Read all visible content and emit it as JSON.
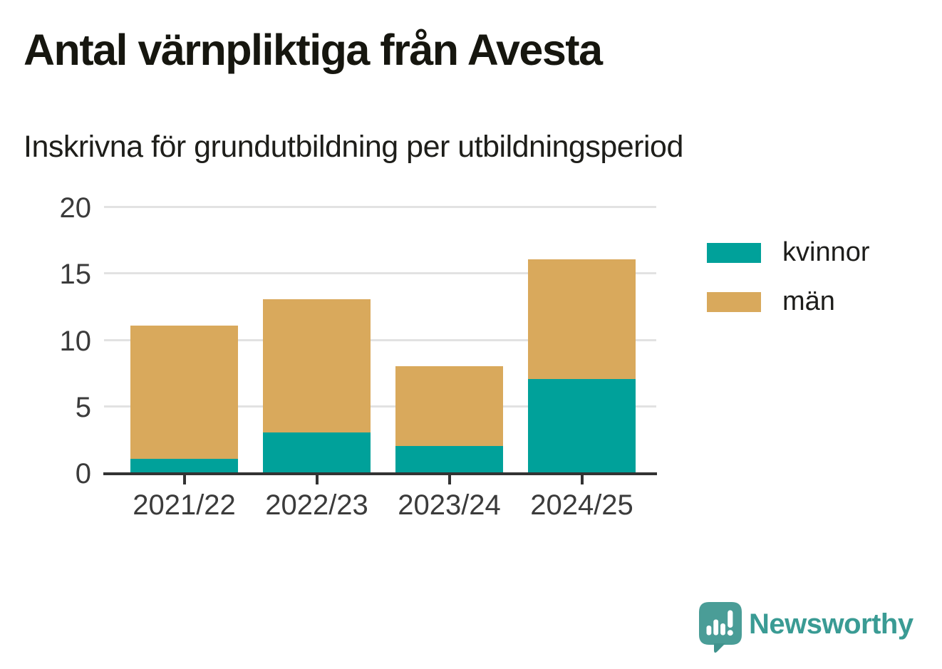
{
  "title": "Antal värnpliktiga från Avesta",
  "subtitle": "Inskrivna för grundutbildning per utbildningsperiod",
  "chart_data": {
    "type": "bar",
    "stacked": true,
    "categories": [
      "2021/22",
      "2022/23",
      "2023/24",
      "2024/25"
    ],
    "series": [
      {
        "name": "kvinnor",
        "color": "#00A19A",
        "values": [
          1,
          3,
          2,
          7
        ]
      },
      {
        "name": "män",
        "color": "#D9A95C",
        "values": [
          10,
          10,
          6,
          9
        ]
      }
    ],
    "totals": [
      11,
      13,
      8,
      16
    ],
    "title": "Antal värnpliktiga från Avesta",
    "subtitle": "Inskrivna för grundutbildning per utbildningsperiod",
    "xlabel": "",
    "ylabel": "",
    "ylim": [
      0,
      20
    ],
    "yticks": [
      0,
      5,
      10,
      15,
      20
    ],
    "grid": "horizontal",
    "legend_position": "right"
  },
  "legend": {
    "items": [
      {
        "label": "kvinnor",
        "color": "#00A19A"
      },
      {
        "label": "män",
        "color": "#D9A95C"
      }
    ]
  },
  "branding": {
    "logo_text": "Newsworthy",
    "logo_icon": "newsworthy-speech-bubble-chart-icon",
    "brand_teal": "#3A9B94",
    "icon_teal": "#4A9D97",
    "icon_tail_teal": "#3F938D"
  },
  "colors": {
    "kvinnor": "#00A19A",
    "man": "#D9A95C",
    "axis": "#333333",
    "grid": "#E2E2E2",
    "tick_label": "#3B3B3B",
    "text": "#1D1D1B",
    "background": "#FFFFFF"
  }
}
